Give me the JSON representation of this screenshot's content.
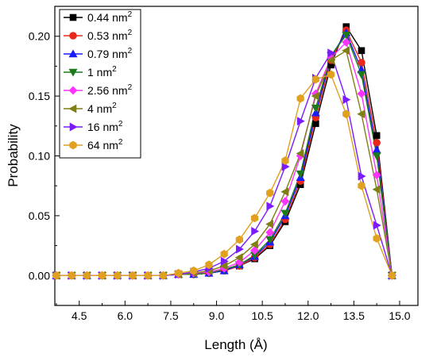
{
  "chart_data": {
    "type": "line",
    "xlabel": "Length (Å)",
    "ylabel": "Probability",
    "xlim": [
      3.7,
      15.6
    ],
    "ylim": [
      -0.025,
      0.225
    ],
    "x_ticks": [
      4.5,
      6.0,
      7.5,
      9.0,
      10.5,
      12.0,
      13.5,
      15.0
    ],
    "x_tick_labels": [
      "4.5",
      "6.0",
      "7.5",
      "9.0",
      "10.5",
      "12.0",
      "13.5",
      "15.0"
    ],
    "y_ticks": [
      0.0,
      0.05,
      0.1,
      0.15,
      0.2
    ],
    "y_tick_labels": [
      "0.00",
      "0.05",
      "0.10",
      "0.15",
      "0.20"
    ],
    "grid": false,
    "legend_position": "top-left",
    "x": [
      3.75,
      4.25,
      4.75,
      5.25,
      5.75,
      6.25,
      6.75,
      7.25,
      7.75,
      8.25,
      8.75,
      9.25,
      9.75,
      10.25,
      10.75,
      11.25,
      11.75,
      12.25,
      12.75,
      13.25,
      13.75,
      14.25,
      14.75
    ],
    "series": [
      {
        "name": "0.44 nm",
        "superscript": "2",
        "color": "#000000",
        "marker": "square",
        "values": [
          0,
          0,
          0,
          0,
          0,
          0,
          0,
          0,
          0.001,
          0.001,
          0.002,
          0.004,
          0.008,
          0.014,
          0.025,
          0.045,
          0.076,
          0.127,
          0.176,
          0.208,
          0.188,
          0.117,
          0
        ]
      },
      {
        "name": "0.53 nm",
        "superscript": "2",
        "color": "#e8281c",
        "marker": "circle",
        "values": [
          0,
          0,
          0,
          0,
          0,
          0,
          0,
          0,
          0.001,
          0.001,
          0.002,
          0.004,
          0.008,
          0.015,
          0.026,
          0.047,
          0.079,
          0.132,
          0.18,
          0.205,
          0.178,
          0.111,
          0
        ]
      },
      {
        "name": "0.79 nm",
        "superscript": "2",
        "color": "#1a1aff",
        "marker": "triangle-up",
        "values": [
          0,
          0,
          0,
          0,
          0,
          0,
          0,
          0,
          0.001,
          0.001,
          0.002,
          0.004,
          0.009,
          0.016,
          0.028,
          0.05,
          0.082,
          0.136,
          0.183,
          0.203,
          0.172,
          0.105,
          0
        ]
      },
      {
        "name": "1 nm",
        "superscript": "2",
        "color": "#1c7a1c",
        "marker": "triangle-down",
        "values": [
          0,
          0,
          0,
          0,
          0,
          0,
          0,
          0,
          0.001,
          0.001,
          0.002,
          0.005,
          0.009,
          0.017,
          0.03,
          0.052,
          0.085,
          0.14,
          0.184,
          0.201,
          0.168,
          0.1,
          0
        ]
      },
      {
        "name": "2.56 nm",
        "superscript": "2",
        "color": "#ff33ff",
        "marker": "diamond",
        "values": [
          0,
          0,
          0,
          0,
          0,
          0,
          0,
          0,
          0.001,
          0.002,
          0.003,
          0.006,
          0.011,
          0.021,
          0.036,
          0.062,
          0.1,
          0.152,
          0.182,
          0.195,
          0.152,
          0.084,
          0
        ]
      },
      {
        "name": "4 nm",
        "superscript": "2",
        "color": "#7f7f14",
        "marker": "triangle-left",
        "values": [
          0,
          0,
          0,
          0,
          0,
          0,
          0,
          0,
          0.001,
          0.002,
          0.004,
          0.008,
          0.015,
          0.026,
          0.043,
          0.07,
          0.102,
          0.15,
          0.18,
          0.188,
          0.135,
          0.072,
          0
        ]
      },
      {
        "name": "16 nm",
        "superscript": "2",
        "color": "#7b1aff",
        "marker": "triangle-right",
        "values": [
          0,
          0,
          0,
          0,
          0,
          0,
          0,
          0,
          0.001,
          0.003,
          0.006,
          0.012,
          0.022,
          0.037,
          0.058,
          0.091,
          0.129,
          0.165,
          0.186,
          0.147,
          0.083,
          0.042,
          0
        ]
      },
      {
        "name": "64 nm",
        "superscript": "2",
        "color": "#e0a020",
        "marker": "hexagon",
        "values": [
          0,
          0,
          0,
          0,
          0,
          0,
          0,
          0,
          0.002,
          0.004,
          0.009,
          0.018,
          0.03,
          0.048,
          0.069,
          0.096,
          0.148,
          0.164,
          0.168,
          0.135,
          0.075,
          0.031,
          0
        ]
      }
    ]
  }
}
